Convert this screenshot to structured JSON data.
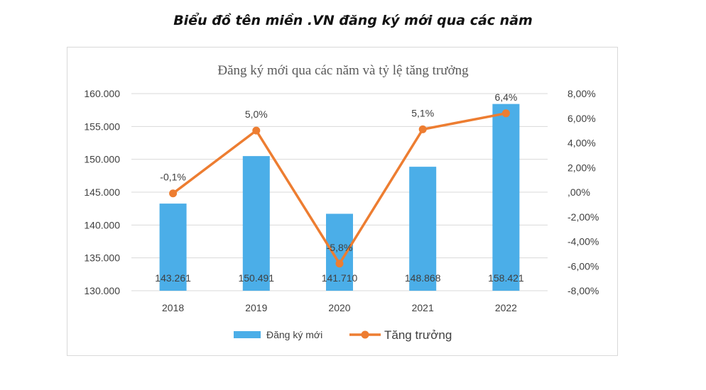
{
  "heading": "Biểu đồ tên miền .VN đăng ký mới qua các năm",
  "chart_data": {
    "type": "bar",
    "title": "Đăng ký mới qua các năm và tỷ lệ tăng trưởng",
    "categories": [
      "2018",
      "2019",
      "2020",
      "2021",
      "2022"
    ],
    "series": [
      {
        "name": "Đăng ký mới",
        "type": "bar",
        "axis": "left",
        "values": [
          143261,
          150491,
          141710,
          148868,
          158421
        ],
        "labels": [
          "143.261",
          "150.491",
          "141.710",
          "148.868",
          "158.421"
        ],
        "color": "#4baee8"
      },
      {
        "name": "Tăng trưởng",
        "type": "line",
        "axis": "right",
        "values": [
          -0.1,
          5.0,
          -5.8,
          5.1,
          6.4
        ],
        "labels": [
          "-0,1%",
          "5,0%",
          "-5,8%",
          "5,1%",
          "6,4%"
        ],
        "color": "#ed7d31"
      }
    ],
    "y_left": {
      "min": 130000,
      "max": 160000,
      "ticks": [
        130000,
        135000,
        140000,
        145000,
        150000,
        155000,
        160000
      ],
      "tick_labels": [
        "130.000",
        "135.000",
        "140.000",
        "145.000",
        "150.000",
        "155.000",
        "160.000"
      ]
    },
    "y_right": {
      "min": -8,
      "max": 8,
      "ticks": [
        -8,
        -6,
        -4,
        -2,
        0,
        2,
        4,
        6,
        8
      ],
      "tick_labels": [
        "-8,00%",
        "-6,00%",
        "-4,00%",
        "-2,00%",
        ",00%",
        "2,00%",
        "4,00%",
        "6,00%",
        "8,00%"
      ]
    },
    "grid": true,
    "legend_position": "bottom"
  }
}
